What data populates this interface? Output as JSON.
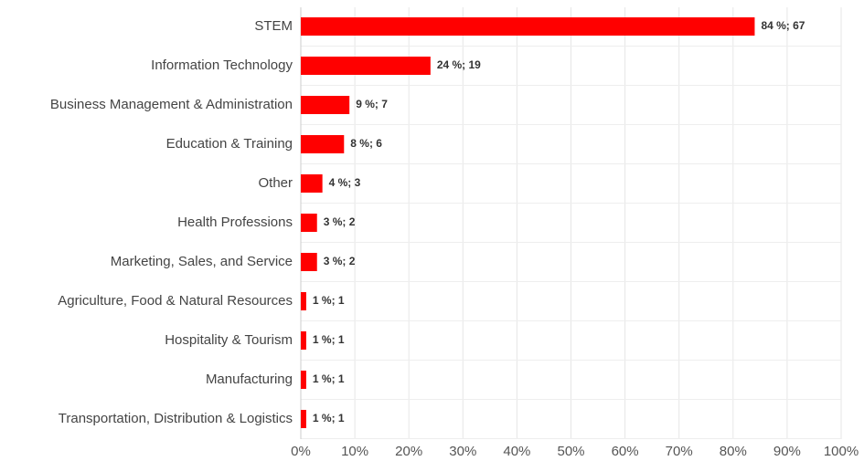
{
  "chart_data": {
    "type": "bar",
    "orientation": "horizontal",
    "categories": [
      "STEM",
      "Information Technology",
      "Business Management & Administration",
      "Education & Training",
      "Other",
      "Health Professions",
      "Marketing, Sales, and Service",
      "Agriculture, Food & Natural Resources",
      "Hospitality & Tourism",
      "Manufacturing",
      "Transportation, Distribution & Logistics"
    ],
    "values": [
      84,
      24,
      9,
      8,
      4,
      3,
      3,
      1,
      1,
      1,
      1
    ],
    "value_labels": [
      "84 %; 67",
      "24 %; 19",
      "9 %; 7",
      "8 %; 6",
      "4 %; 3",
      "3 %; 2",
      "3 %; 2",
      "1 %; 1",
      "1 %; 1",
      "1 %; 1",
      "1 %; 1"
    ],
    "color": "#ff0000",
    "xlim": [
      0,
      100
    ],
    "xticks": [
      {
        "value": 0,
        "label": "0%"
      },
      {
        "value": 10,
        "label": "10%"
      },
      {
        "value": 20,
        "label": "20%"
      },
      {
        "value": 30,
        "label": "30%"
      },
      {
        "value": 40,
        "label": "40%"
      },
      {
        "value": 50,
        "label": "50%"
      },
      {
        "value": 60,
        "label": "60%"
      },
      {
        "value": 70,
        "label": "70%"
      },
      {
        "value": 80,
        "label": "80%"
      },
      {
        "value": 90,
        "label": "90%"
      },
      {
        "value": 100,
        "label": "100%"
      }
    ],
    "grid": true
  }
}
